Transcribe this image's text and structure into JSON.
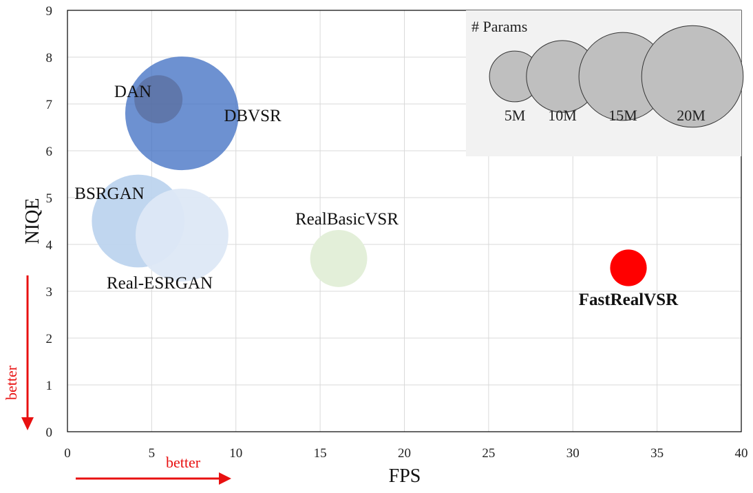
{
  "chart_data": {
    "type": "bubble",
    "xlabel": "FPS",
    "ylabel": "NIQE",
    "xlim": [
      0,
      40
    ],
    "ylim": [
      0,
      9
    ],
    "x_ticks": [
      0,
      5,
      10,
      15,
      20,
      25,
      30,
      35,
      40
    ],
    "y_ticks": [
      0,
      1,
      2,
      3,
      4,
      5,
      6,
      7,
      8,
      9
    ],
    "grid": true,
    "points": [
      {
        "name": "DBVSR",
        "x": 6.8,
        "y": 6.8,
        "params_m": 25,
        "color": "#4472c4",
        "opacity": 0.78,
        "bold": false
      },
      {
        "name": "DAN",
        "x": 5.4,
        "y": 7.1,
        "params_m": 4.5,
        "color": "#5b6f9e",
        "opacity": 0.75,
        "bold": false
      },
      {
        "name": "BSRGAN",
        "x": 4.2,
        "y": 4.5,
        "params_m": 16.7,
        "color": "#bdd4ee",
        "opacity": 0.95,
        "bold": false
      },
      {
        "name": "Real-ESRGAN",
        "x": 6.8,
        "y": 4.2,
        "params_m": 16.7,
        "color": "#dde8f6",
        "opacity": 0.95,
        "bold": false
      },
      {
        "name": "RealBasicVSR",
        "x": 16.1,
        "y": 3.7,
        "params_m": 6.3,
        "color": "#e3efd9",
        "opacity": 1,
        "bold": false
      },
      {
        "name": "FastRealVSR",
        "x": 33.3,
        "y": 3.5,
        "params_m": 2.6,
        "color": "#ff0000",
        "opacity": 1,
        "bold": true
      }
    ],
    "legend": {
      "title": "# Params",
      "placement": "top-right",
      "entries": [
        {
          "label": "5M",
          "params_m": 5
        },
        {
          "label": "10M",
          "params_m": 10
        },
        {
          "label": "15M",
          "params_m": 15
        },
        {
          "label": "20M",
          "params_m": 20
        }
      ]
    },
    "annotations": {
      "x_better": "better",
      "y_better": "better",
      "arrow_color": "#e81010"
    }
  }
}
